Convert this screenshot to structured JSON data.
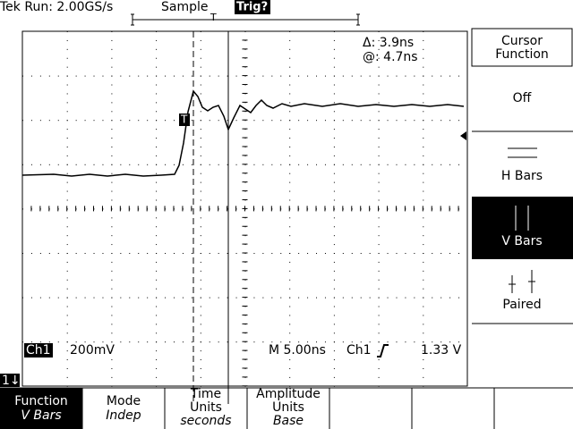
{
  "header": {
    "status": "Tek Run: 2.00GS/s",
    "mode": "Sample",
    "trigger": "Trig?",
    "trigger_marker": "T"
  },
  "readouts": {
    "delta": "Δ: 3.9ns",
    "at": "@: 4.7ns",
    "channel": "Ch1",
    "scale": "200mV",
    "timebase": "M 5.00ns",
    "trigger_source": "Ch1",
    "trigger_level": "1.33 V",
    "ground_marker": "1↓",
    "trigger_point": "T"
  },
  "side_menu": {
    "title": [
      "Cursor",
      "Function"
    ],
    "items": [
      "Off",
      "H Bars",
      "V Bars",
      "Paired"
    ]
  },
  "bottom_menu": [
    {
      "label": [
        "Function"
      ],
      "value": "V Bars"
    },
    {
      "label": [
        "Mode"
      ],
      "value": "Indep"
    },
    {
      "label": [
        "Time",
        "Units"
      ],
      "value": "seconds"
    },
    {
      "label": [
        "Amplitude",
        "Units"
      ],
      "value": "Base"
    }
  ]
}
